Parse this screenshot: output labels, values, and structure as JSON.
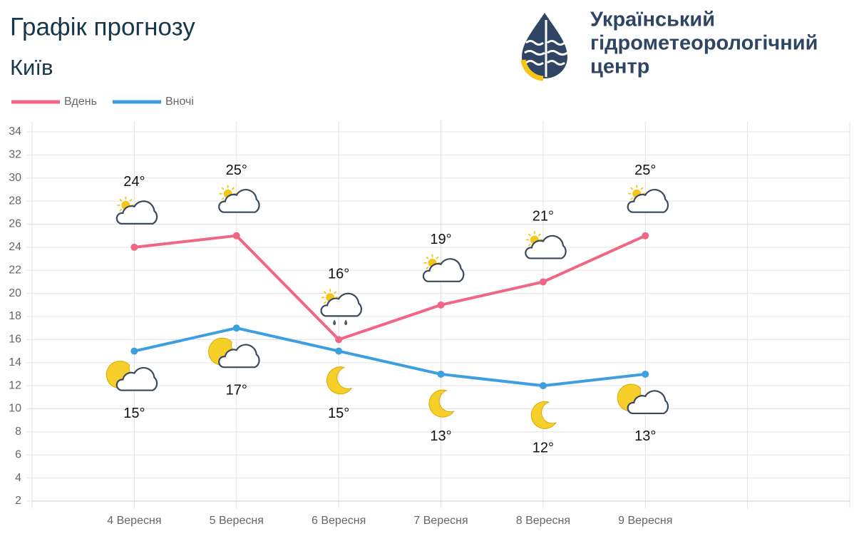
{
  "chart_data": {
    "type": "line",
    "title": "Графік прогнозу",
    "subtitle": "Київ",
    "categories": [
      "4 Вересня",
      "5 Вересня",
      "6 Вересня",
      "7 Вересня",
      "8 Вересня",
      "9 Вересня"
    ],
    "series": [
      {
        "name": "Вдень",
        "color": "#f06783",
        "values": [
          24,
          25,
          16,
          19,
          21,
          25
        ],
        "value_labels": [
          "24°",
          "25°",
          "16°",
          "19°",
          "21°",
          "25°"
        ]
      },
      {
        "name": "Вночі",
        "color": "#3d9fe0",
        "values": [
          15,
          17,
          15,
          13,
          12,
          13
        ],
        "value_labels": [
          "15°",
          "17°",
          "15°",
          "13°",
          "12°",
          "13°"
        ]
      }
    ],
    "ylim": [
      2,
      34
    ],
    "yticks": [
      2,
      4,
      6,
      8,
      10,
      12,
      14,
      16,
      18,
      20,
      22,
      24,
      26,
      28,
      30,
      32,
      34
    ],
    "grid": true,
    "legend": "top-left"
  },
  "logo": {
    "lines": [
      "Український",
      "гідрометеорологічний",
      "центр"
    ]
  }
}
